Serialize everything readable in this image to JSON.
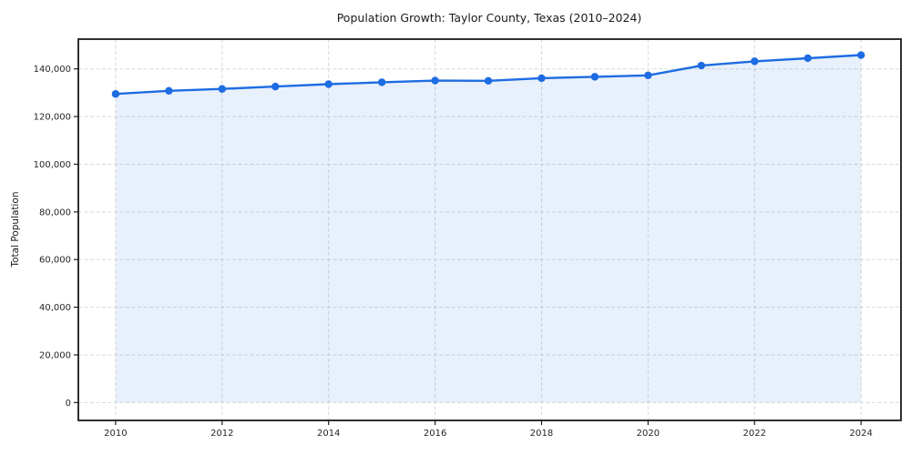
{
  "chart_data": {
    "type": "area",
    "title": "Population Growth: Taylor County, Texas (2010–2024)",
    "xlabel": "",
    "ylabel": "Total Population",
    "x": [
      2010,
      2011,
      2012,
      2013,
      2014,
      2015,
      2016,
      2017,
      2018,
      2019,
      2020,
      2021,
      2022,
      2023,
      2024
    ],
    "values": [
      129500,
      130800,
      131600,
      132600,
      133600,
      134400,
      135100,
      135000,
      136100,
      136700,
      137300,
      141400,
      143200,
      144500,
      145800
    ],
    "xticks": [
      2010,
      2012,
      2014,
      2016,
      2018,
      2020,
      2022,
      2024
    ],
    "yticks": [
      0,
      20000,
      40000,
      60000,
      80000,
      100000,
      120000,
      140000
    ],
    "xlim": [
      2009.3,
      2024.75
    ],
    "ylim": [
      -7500,
      152500
    ],
    "grid": true,
    "legend": null,
    "colors": {
      "line": "#1d6ce2",
      "fill": "rgba(29, 108, 226, 0.10)",
      "grid": "#d9d9d9",
      "spine": "#1a1a1a",
      "text": "#262626"
    }
  }
}
